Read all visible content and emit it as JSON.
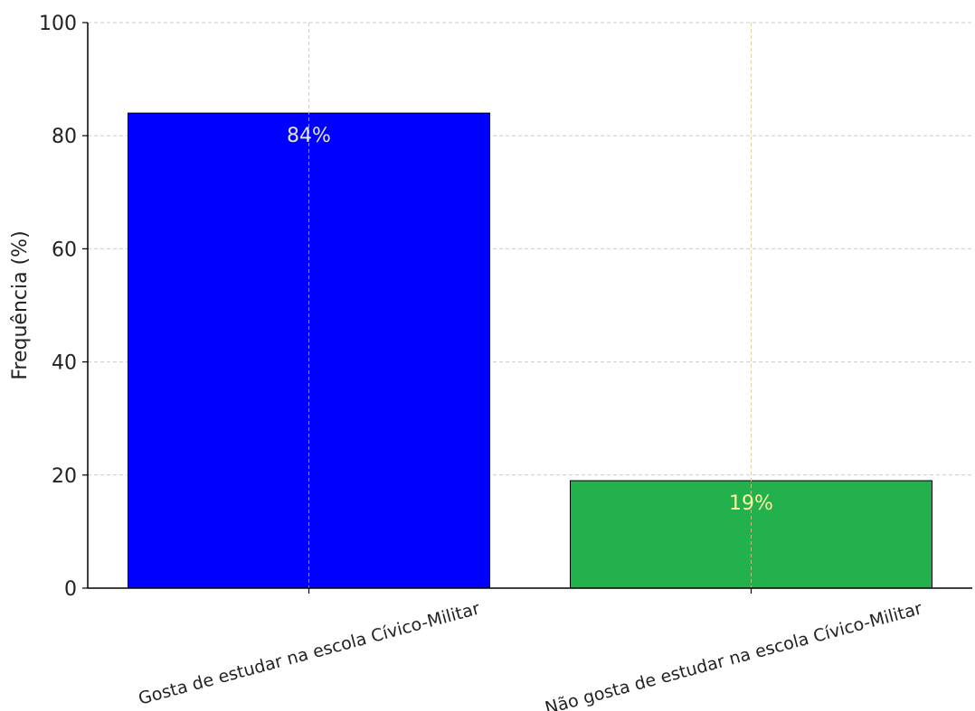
{
  "chart_data": {
    "type": "bar",
    "title": "",
    "xlabel": "",
    "ylabel": "Frequência (%)",
    "ylim": [
      0,
      100
    ],
    "yticks": [
      0,
      20,
      40,
      60,
      80,
      100
    ],
    "grid": true,
    "categories": [
      "Gosta de estudar na escola Cívico-Militar",
      "Não gosta de estudar na escola Cívico-Militar"
    ],
    "values": [
      84,
      19
    ],
    "data_labels": [
      "84%",
      "19%"
    ],
    "colors": [
      "#0000ff",
      "#22b14c"
    ],
    "label_colors": [
      "#e6e6e6",
      "#fff2a0"
    ]
  }
}
